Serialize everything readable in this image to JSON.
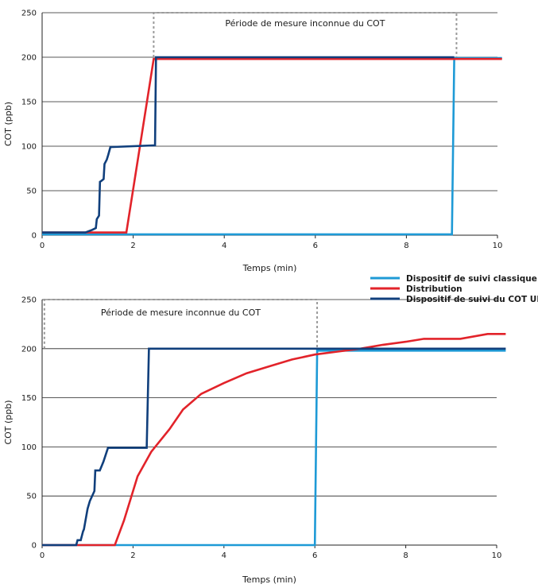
{
  "chart_data": [
    {
      "type": "line",
      "title": "",
      "xlabel": "Temps (min)",
      "ylabel": "COT (ppb)",
      "xlim": [
        0,
        10
      ],
      "ylim": [
        0,
        250
      ],
      "xticks": [
        0,
        2,
        4,
        6,
        8,
        10
      ],
      "yticks": [
        0,
        50,
        100,
        150,
        200,
        250
      ],
      "grid": "horizontal",
      "annotation": {
        "text": "Période de mesure inconnue du COT",
        "x_range": [
          2.45,
          9.1
        ]
      },
      "series": [
        {
          "name": "Dispositif de suivi classique",
          "color": "#1e9ad6",
          "x": [
            0,
            9.0,
            9.05,
            10.1
          ],
          "y": [
            1,
            1,
            199,
            199
          ]
        },
        {
          "name": "Distribution",
          "color": "#e2232a",
          "x": [
            0,
            1.85,
            2.45,
            10.1
          ],
          "y": [
            3,
            3,
            198,
            198
          ]
        },
        {
          "name": "Dispositif de suivi du COT UPW",
          "color": "#103f7c",
          "x": [
            0,
            0.95,
            1.1,
            1.18,
            1.2,
            1.25,
            1.27,
            1.3,
            1.35,
            1.37,
            1.42,
            1.45,
            1.5,
            2.48,
            2.5,
            9.05
          ],
          "y": [
            3,
            3,
            6,
            8,
            18,
            22,
            60,
            61,
            63,
            80,
            85,
            90,
            99,
            101,
            200,
            200
          ]
        }
      ]
    },
    {
      "type": "line",
      "title": "",
      "xlabel": "Temps (min)",
      "ylabel": "COT (ppb)",
      "xlim": [
        0,
        10
      ],
      "ylim": [
        0,
        250
      ],
      "xticks": [
        0,
        2,
        4,
        6,
        8,
        10
      ],
      "yticks": [
        0,
        50,
        100,
        150,
        200,
        250
      ],
      "grid": "horizontal",
      "annotation": {
        "text": "Période de mesure inconnue du COT",
        "x_range": [
          0.05,
          6.05
        ]
      },
      "series": [
        {
          "name": "Dispositif de suivi classique",
          "color": "#1e9ad6",
          "x": [
            0,
            6.0,
            6.05,
            10.2
          ],
          "y": [
            0,
            0,
            198,
            198
          ]
        },
        {
          "name": "Distribution",
          "color": "#e2232a",
          "x": [
            0,
            1.6,
            1.8,
            2.1,
            2.4,
            2.8,
            3.1,
            3.5,
            4.0,
            4.5,
            5.0,
            5.5,
            6.0,
            6.5,
            7.0,
            7.5,
            8.0,
            8.4,
            9.2,
            9.8,
            10.2
          ],
          "y": [
            0,
            0,
            25,
            70,
            95,
            118,
            138,
            154,
            165,
            175,
            182,
            189,
            194,
            197,
            200,
            204,
            207,
            210,
            210,
            215,
            215
          ]
        },
        {
          "name": "Dispositif de suivi du COT UPW",
          "color": "#103f7c",
          "x": [
            0,
            0.75,
            0.78,
            0.85,
            0.9,
            0.92,
            1.0,
            1.05,
            1.15,
            1.17,
            1.27,
            1.35,
            1.45,
            2.3,
            2.35,
            10.2
          ],
          "y": [
            0,
            0,
            5,
            5,
            14,
            16,
            37,
            45,
            55,
            76,
            76,
            85,
            99,
            99,
            200,
            200
          ]
        }
      ]
    }
  ],
  "legend": {
    "placement": "right",
    "entries": [
      {
        "label": "Dispositif de suivi classique",
        "color": "#1e9ad6"
      },
      {
        "label": "Distribution",
        "color": "#e2232a"
      },
      {
        "label": "Dispositif de suivi du COT UPW",
        "color": "#103f7c"
      }
    ]
  }
}
